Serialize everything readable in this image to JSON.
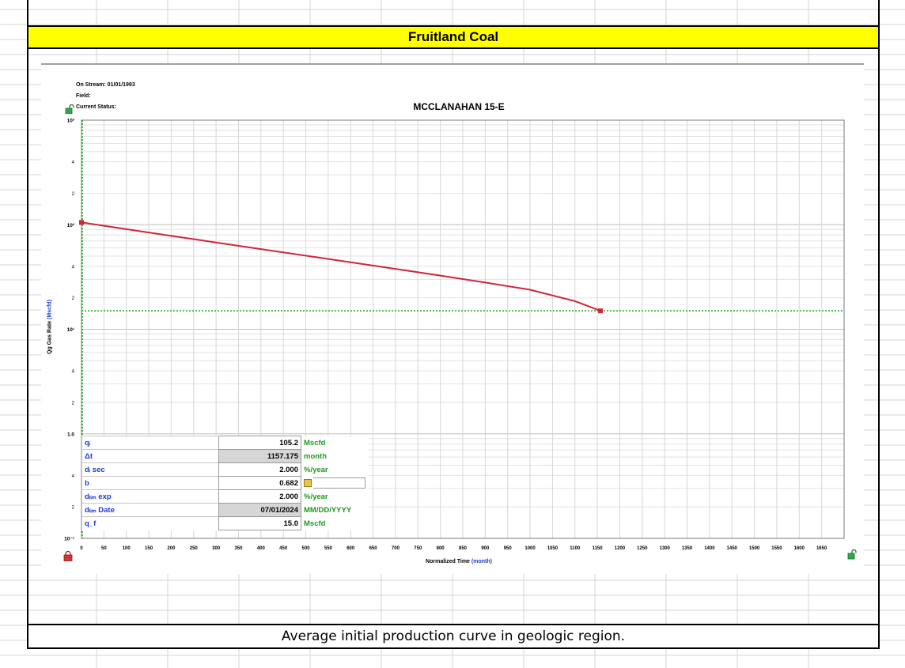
{
  "spreadsheet": {
    "header_title": "Fruitland Coal",
    "caption": "Average initial production curve in geologic region.",
    "header_fill": "#ffff00"
  },
  "info": {
    "on_stream": "On Stream: 01/01/1993",
    "field": "Field:",
    "current_status": "Current Status:"
  },
  "chart_data": {
    "type": "line",
    "title": "MCCLANAHAN 15-E",
    "xlabel": "Normalized Time",
    "xlabel_unit": "(month)",
    "ylabel": "Qg Gas Rate",
    "ylabel_unit": "(Mscfd)",
    "x_scale": "linear",
    "y_scale": "log",
    "xlim": [
      0,
      1700
    ],
    "ylim": [
      0.1,
      1000
    ],
    "x_ticks": [
      0,
      50,
      100,
      150,
      200,
      250,
      300,
      350,
      400,
      450,
      500,
      550,
      600,
      650,
      700,
      750,
      800,
      850,
      900,
      950,
      1000,
      1050,
      1100,
      1150,
      1200,
      1250,
      1300,
      1350,
      1400,
      1450,
      1500,
      1550,
      1600,
      1650
    ],
    "y_major_ticks": [
      {
        "value": 0.1,
        "label": "10⁻¹"
      },
      {
        "value": 1,
        "label": "1.0"
      },
      {
        "value": 10,
        "label": "10¹"
      },
      {
        "value": 100,
        "label": "10²"
      },
      {
        "value": 1000,
        "label": "10³"
      }
    ],
    "y_minor_labels": [
      "2",
      "4"
    ],
    "grid": true,
    "series": [
      {
        "color": "#d0263a",
        "x": [
          0,
          100,
          200,
          300,
          400,
          500,
          600,
          700,
          800,
          900,
          1000,
          1100,
          1157
        ],
        "y": [
          105.2,
          90.6,
          78.2,
          67.6,
          58.4,
          50.6,
          43.7,
          37.8,
          32.6,
          28.0,
          23.9,
          18.6,
          15.0
        ]
      }
    ],
    "reference_lines": [
      {
        "orientation": "horizontal",
        "y": 15.0,
        "color": "#22aa22",
        "style": "dotted"
      },
      {
        "orientation": "vertical",
        "x": 0,
        "color": "#22aa22",
        "style": "dotted"
      }
    ],
    "endpoints": [
      {
        "x": 0,
        "y": 105.2
      },
      {
        "x": 1157,
        "y": 15.0
      }
    ]
  },
  "params": [
    {
      "name": "qᵢ",
      "value": "105.2",
      "unit": "Mscfd",
      "grey": false
    },
    {
      "name": "Δt",
      "value": "1157.175",
      "unit": "month",
      "grey": true
    },
    {
      "name": "dᵢ sec",
      "value": "2.000",
      "unit": "%/year",
      "grey": false
    },
    {
      "name": "b",
      "value": "0.682",
      "unit": "",
      "grey": false,
      "icon": "b-factor-icon"
    },
    {
      "name": "dₗᵢₘ exp",
      "value": "2.000",
      "unit": "%/year",
      "grey": false
    },
    {
      "name": "dₗᵢₘ Date",
      "value": "07/01/2024",
      "unit": "MM/DD/YYYY",
      "grey": true
    },
    {
      "name": "q_f",
      "value": "15.0",
      "unit": "Mscfd",
      "grey": false
    }
  ],
  "icons": {
    "top_left": "unlock-icon",
    "bottom_left": "lock-icon",
    "bottom_right": "unlock-icon"
  },
  "colors": {
    "unit_blue": "#1a3cc8",
    "unit_green": "#1c9a1c",
    "curve_red": "#d0263a",
    "reference_green": "#22aa22"
  }
}
